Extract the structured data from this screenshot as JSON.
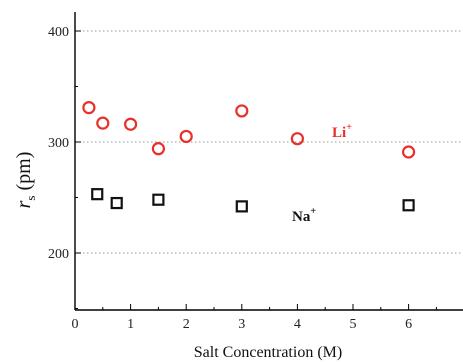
{
  "chart_data": {
    "type": "scatter",
    "xlabel": "Salt Concentration (M)",
    "ylabel_main": "r",
    "ylabel_sub": "s",
    "ylabel_unit": " (pm)",
    "xlim": [
      0,
      7
    ],
    "ylim": [
      150,
      420
    ],
    "x_ticks": [
      0,
      1,
      2,
      3,
      4,
      5,
      6
    ],
    "y_ticks": [
      200,
      300,
      400
    ],
    "grid": "horizontal dotted",
    "series": [
      {
        "name": "Li",
        "charge": "+",
        "marker": "circle",
        "color": "#e8302a",
        "x": [
          0.25,
          0.5,
          1.0,
          1.5,
          2.0,
          3.0,
          4.0,
          6.0
        ],
        "y": [
          331,
          317,
          316,
          294,
          305,
          328,
          303,
          291
        ]
      },
      {
        "name": "Na",
        "charge": "+",
        "marker": "square",
        "color": "#111111",
        "x": [
          0.4,
          0.75,
          1.5,
          3.0,
          6.0
        ],
        "y": [
          253,
          245,
          248,
          242,
          243
        ]
      }
    ]
  }
}
